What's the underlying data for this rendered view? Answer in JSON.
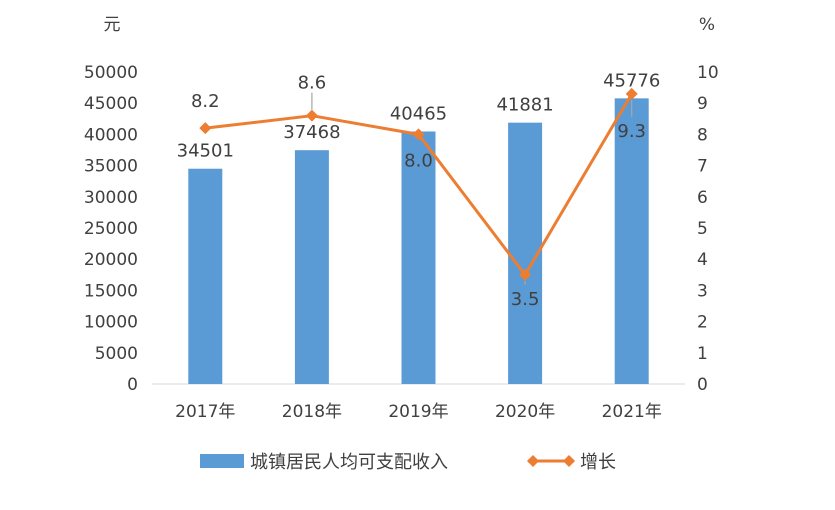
{
  "chart_data": {
    "type": "bar",
    "categories": [
      "2017年",
      "2018年",
      "2019年",
      "2020年",
      "2021年"
    ],
    "series": [
      {
        "name": "城镇居民人均可支配收入",
        "kind": "bar",
        "axis": "left",
        "values": [
          34501,
          37468,
          40465,
          41881,
          45776
        ],
        "color": "#5B9BD5"
      },
      {
        "name": "增长",
        "kind": "line",
        "axis": "right",
        "marker": "diamond",
        "values": [
          8.2,
          8.6,
          8.0,
          3.5,
          9.3
        ],
        "labels": [
          "8.2",
          "8.6",
          "8.0",
          "3.5",
          "9.3"
        ],
        "color": "#ED7D31"
      }
    ],
    "y_left": {
      "unit": "元",
      "ylim": [
        0,
        50000
      ],
      "ticks": [
        "0",
        "5000",
        "10000",
        "15000",
        "20000",
        "25000",
        "30000",
        "35000",
        "40000",
        "45000",
        "50000"
      ]
    },
    "y_right": {
      "unit": "%",
      "ylim": [
        0,
        10
      ],
      "ticks": [
        "0",
        "1",
        "2",
        "3",
        "4",
        "5",
        "6",
        "7",
        "8",
        "9",
        "10"
      ]
    },
    "grid": false,
    "legend_position": "bottom"
  }
}
